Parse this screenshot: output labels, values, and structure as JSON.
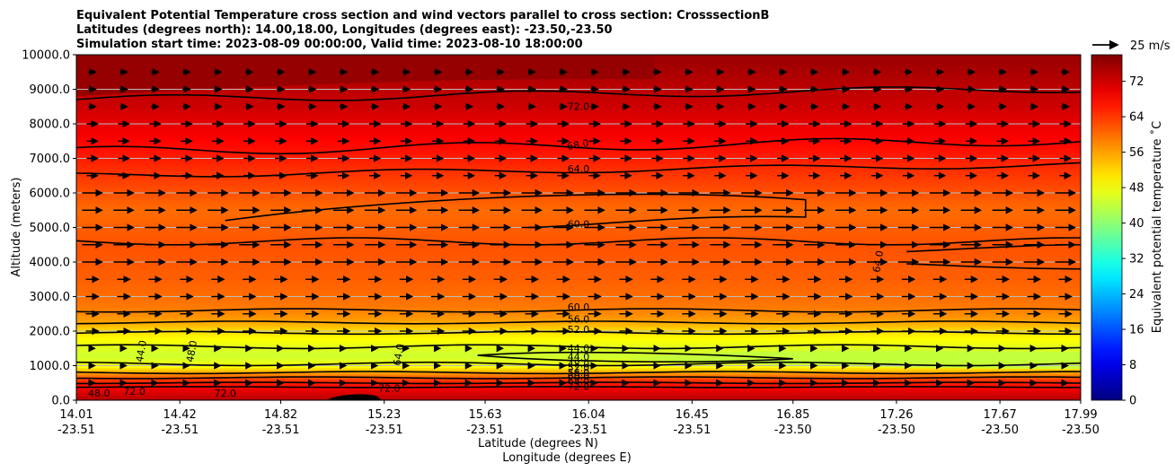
{
  "chart_data": {
    "type": "heatmap",
    "title_lines": [
      "Equivalent Potential Temperature cross section and wind vectors parallel to cross section: CrosssectionB",
      "Latitudes (degrees north): 14.00,18.00, Longitudes (degrees east): -23.50,-23.50",
      "Simulation start time: 2023-08-09 00:00:00, Valid time: 2023-08-10 18:00:00"
    ],
    "xlabel_lines": [
      "Latitude (degrees N)",
      "Longitude (degrees E)"
    ],
    "ylabel": "Altitude (meters)",
    "colorbar_label": "Equivalent potential temperature ˚C",
    "quiver_key": "25 m/s",
    "ylim": [
      0,
      10000
    ],
    "yticks": [
      "0.0",
      "1000.0",
      "2000.0",
      "3000.0",
      "4000.0",
      "5000.0",
      "6000.0",
      "7000.0",
      "8000.0",
      "9000.0",
      "10000.0"
    ],
    "xlim": [
      14.01,
      17.99
    ],
    "xticks": [
      {
        "lat": "14.01",
        "lon": "-23.51"
      },
      {
        "lat": "14.42",
        "lon": "-23.51"
      },
      {
        "lat": "14.82",
        "lon": "-23.51"
      },
      {
        "lat": "15.23",
        "lon": "-23.51"
      },
      {
        "lat": "15.63",
        "lon": "-23.51"
      },
      {
        "lat": "16.04",
        "lon": "-23.51"
      },
      {
        "lat": "16.45",
        "lon": "-23.51"
      },
      {
        "lat": "16.85",
        "lon": "-23.50"
      },
      {
        "lat": "17.26",
        "lon": "-23.50"
      },
      {
        "lat": "17.67",
        "lon": "-23.50"
      },
      {
        "lat": "17.99",
        "lon": "-23.50"
      }
    ],
    "colorbar_range": [
      0,
      78
    ],
    "colorbar_ticks": [
      "0",
      "8",
      "16",
      "24",
      "32",
      "40",
      "48",
      "56",
      "64",
      "72"
    ],
    "grid": true,
    "contour_labels": [
      "72.0",
      "68.0",
      "64.0",
      "60.0",
      "60.0",
      "56.0",
      "52.0",
      "44.0",
      "44.0",
      "48.0",
      "52.0",
      "56.0",
      "60.0",
      "64.0",
      "68.0",
      "64.0",
      "44.0",
      "48.0",
      "48.0",
      "72.0",
      "72.0",
      "72.0",
      "72.0"
    ],
    "vertical_profile": [
      {
        "alt": 0,
        "theta": 74
      },
      {
        "alt": 300,
        "theta": 70
      },
      {
        "alt": 600,
        "theta": 64
      },
      {
        "alt": 800,
        "theta": 56
      },
      {
        "alt": 1000,
        "theta": 48
      },
      {
        "alt": 1300,
        "theta": 45
      },
      {
        "alt": 1600,
        "theta": 47
      },
      {
        "alt": 2000,
        "theta": 51
      },
      {
        "alt": 2300,
        "theta": 56
      },
      {
        "alt": 2700,
        "theta": 59
      },
      {
        "alt": 3500,
        "theta": 61
      },
      {
        "alt": 4500,
        "theta": 62
      },
      {
        "alt": 5500,
        "theta": 60
      },
      {
        "alt": 6500,
        "theta": 64
      },
      {
        "alt": 7500,
        "theta": 68
      },
      {
        "alt": 8500,
        "theta": 72
      },
      {
        "alt": 10000,
        "theta": 76
      }
    ]
  }
}
